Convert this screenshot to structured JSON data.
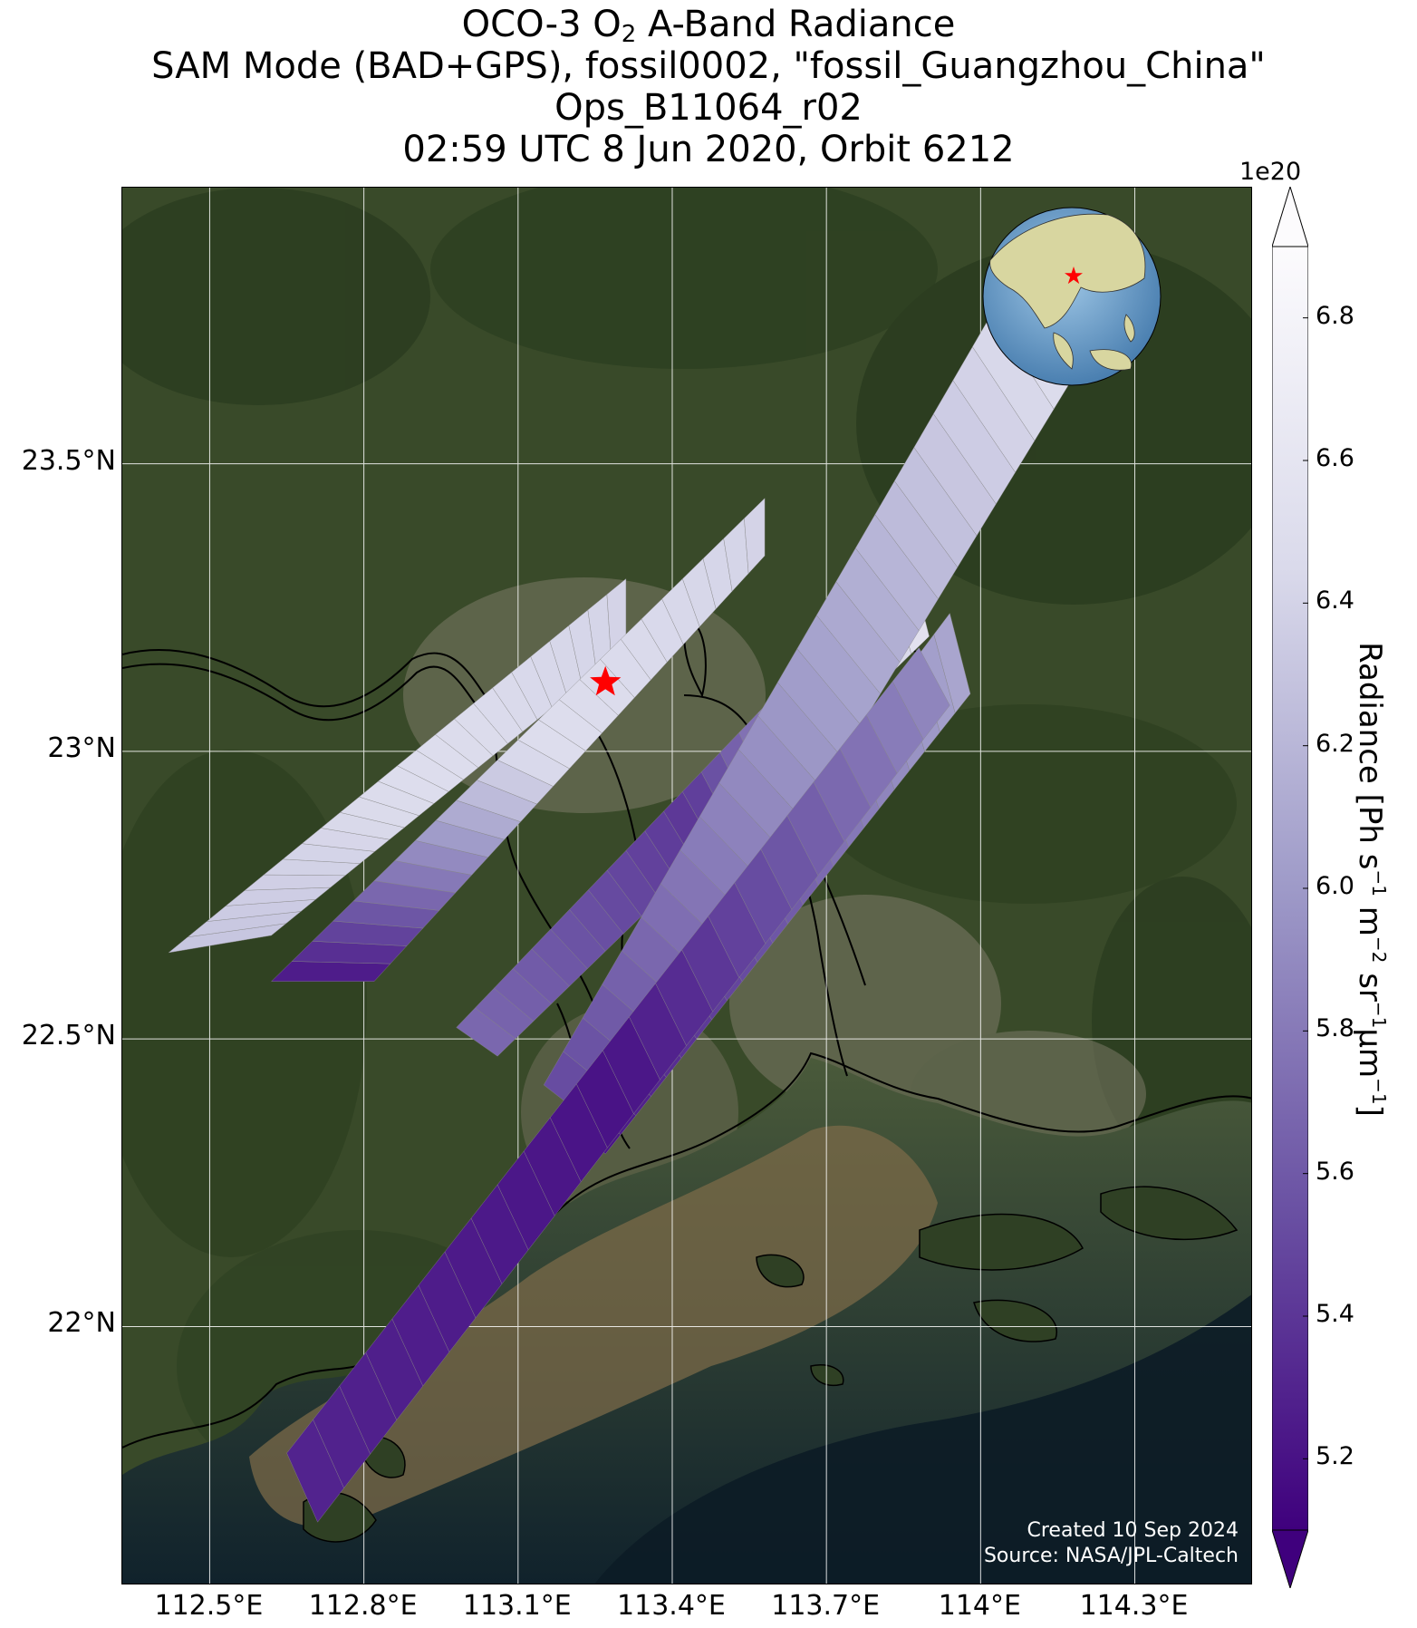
{
  "title": {
    "line1_prefix": "OCO-3 O",
    "line1_sub": "2",
    "line1_suffix": " A-Band Radiance",
    "line2": "SAM Mode (BAD+GPS), fossil0002, \"fossil_Guangzhou_China\"",
    "line3": "Ops_B11064_r02",
    "line4": "02:59 UTC 8 Jun 2020, Orbit 6212"
  },
  "map": {
    "lon_range": [
      112.33,
      114.53
    ],
    "lat_range": [
      21.55,
      23.98
    ],
    "lon_ticks": [
      {
        "value": 112.5,
        "label": "112.5°E"
      },
      {
        "value": 112.8,
        "label": "112.8°E"
      },
      {
        "value": 113.1,
        "label": "113.1°E"
      },
      {
        "value": 113.4,
        "label": "113.4°E"
      },
      {
        "value": 113.7,
        "label": "113.7°E"
      },
      {
        "value": 114.0,
        "label": "114°E"
      },
      {
        "value": 114.3,
        "label": "114.3°E"
      }
    ],
    "lat_ticks": [
      {
        "value": 23.5,
        "label": "23.5°N"
      },
      {
        "value": 23.0,
        "label": "23°N"
      },
      {
        "value": 22.5,
        "label": "22.5°N"
      },
      {
        "value": 22.0,
        "label": "22°N"
      }
    ],
    "target": {
      "name": "fossil_Guangzhou_China",
      "lon": 113.27,
      "lat": 23.12
    },
    "credit_line1": "Created 10 Sep 2024",
    "credit_line2": "Source: NASA/JPL-Caltech",
    "inset_globe": "globe-inset-showing-east-asia-with-red-star",
    "colors": {
      "land": "#3c4a2c",
      "sea": "#1e3a44",
      "sediment": "#7a6a4c",
      "coastline": "#000000",
      "target_star": "#ff0000",
      "gridline": "#ffffff"
    }
  },
  "colorbar": {
    "colormap": "Purples_r",
    "scale_label": "1e20",
    "label_main": "Radiance [Ph s",
    "label_parts": [
      "Radiance [Ph s",
      "−1",
      " m",
      "−2",
      " sr",
      "−1",
      "µm",
      "−1",
      "]"
    ],
    "vmin": 5.1,
    "vmax": 6.9,
    "extend": "both",
    "ticks": [
      {
        "value": 5.2,
        "label": "5.2"
      },
      {
        "value": 5.4,
        "label": "5.4"
      },
      {
        "value": 5.6,
        "label": "5.6"
      },
      {
        "value": 5.8,
        "label": "5.8"
      },
      {
        "value": 6.0,
        "label": "6.0"
      },
      {
        "value": 6.2,
        "label": "6.2"
      },
      {
        "value": 6.4,
        "label": "6.4"
      },
      {
        "value": 6.6,
        "label": "6.6"
      },
      {
        "value": 6.8,
        "label": "6.8"
      }
    ]
  },
  "swaths": [
    {
      "name": "swath-1",
      "radiance_start": 6.3,
      "radiance_mid": 6.5,
      "radiance_end": 6.4
    },
    {
      "name": "swath-2",
      "radiance_start": 5.2,
      "radiance_mid": 6.5,
      "radiance_end": 6.4
    },
    {
      "name": "swath-3",
      "radiance_start": 5.7,
      "radiance_mid": 5.4,
      "radiance_end": 6.6
    },
    {
      "name": "swath-4",
      "radiance_start": 5.5,
      "radiance_mid": 6.0,
      "radiance_end": 6.5
    },
    {
      "name": "swath-5",
      "radiance_start": 5.2,
      "radiance_mid": 5.6,
      "radiance_end": 6.1
    },
    {
      "name": "swath-6",
      "radiance_start": 5.3,
      "radiance_mid": 5.2,
      "radiance_end": 5.9
    }
  ]
}
